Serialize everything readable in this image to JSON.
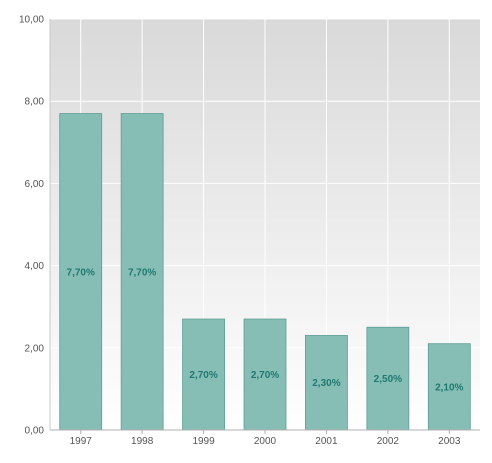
{
  "chart_data": {
    "type": "bar",
    "title": "",
    "xlabel": "",
    "ylabel": "",
    "categories": [
      "1997",
      "1998",
      "1999",
      "2000",
      "2001",
      "2002",
      "2003"
    ],
    "values": [
      7.7,
      7.7,
      2.7,
      2.7,
      2.3,
      2.5,
      2.1
    ],
    "data_labels": [
      "7,70%",
      "7,70%",
      "2,70%",
      "2,70%",
      "2,30%",
      "2,50%",
      "2,10%"
    ],
    "ylim": [
      0,
      10
    ],
    "y_ticks": [
      0,
      2,
      4,
      6,
      8,
      10
    ],
    "y_tick_labels": [
      "0,00",
      "2,00",
      "4,00",
      "6,00",
      "8,00",
      "10,00"
    ],
    "grid": true,
    "legend": "none",
    "colors": {
      "bar_fill": "#86bdb4",
      "bar_stroke": "#5e9e94",
      "label_text": "#1f7a72",
      "plot_bg_top": "#d9d9d9",
      "plot_bg_bottom": "#ffffff",
      "grid": "#ffffff"
    }
  }
}
